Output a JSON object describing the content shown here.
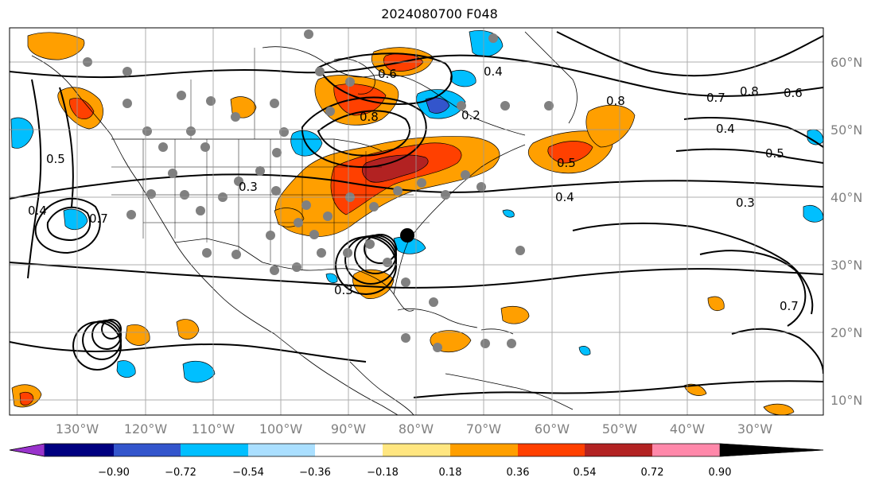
{
  "title": "2024080700 F048",
  "map": {
    "lat_labels": [
      "60°N",
      "50°N",
      "40°N",
      "30°N",
      "20°N",
      "10°N"
    ],
    "lon_labels": [
      "130°W",
      "120°W",
      "110°W",
      "100°W",
      "90°W",
      "80°W",
      "70°W",
      "60°W",
      "50°W",
      "40°W",
      "30°W"
    ],
    "contour_labels": [
      "0.6",
      "0.4",
      "0.8",
      "0.2",
      "0.5",
      "0.7",
      "0.3",
      "0.4",
      "0.5",
      "0.8",
      "0.6",
      "0.4",
      "0.3",
      "0.7",
      "0.5",
      "0.4",
      "0.8",
      "0.7",
      "0.3"
    ]
  },
  "colorbar": {
    "colors": [
      "#9933cc",
      "#000080",
      "#3355cc",
      "#00bfff",
      "#aadfff",
      "#ffffff",
      "#ffe680",
      "#ff9f00",
      "#ff4000",
      "#b22222",
      "#ff88aa"
    ],
    "ticks": [
      "−0.90",
      "−0.72",
      "−0.54",
      "−0.36",
      "−0.18",
      "0.18",
      "0.36",
      "0.54",
      "0.72",
      "0.90"
    ]
  }
}
